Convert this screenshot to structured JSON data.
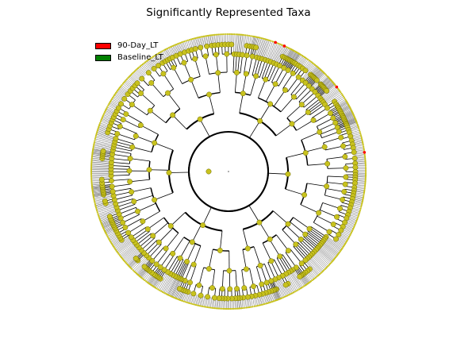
{
  "title": "Significantly Represented Taxa",
  "legend": [
    {
      "label": "90-Day_LT",
      "color": "#ff0000"
    },
    {
      "label": "Baseline_LT",
      "color": "#008000"
    }
  ],
  "colors": {
    "node_fill": "#c8c21e",
    "node_stroke": "#6b6800",
    "branch": "#000000",
    "background": "#ffffff"
  }
}
